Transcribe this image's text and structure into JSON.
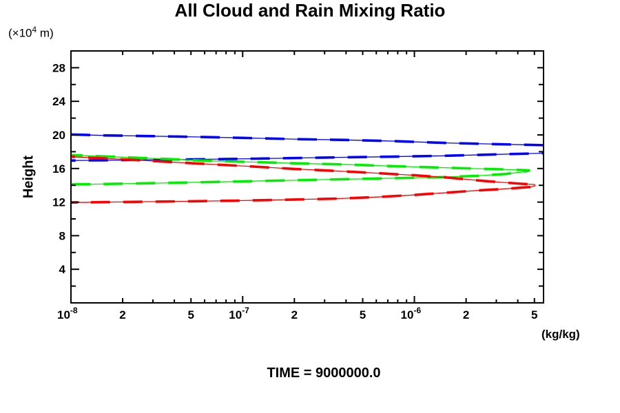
{
  "title": "All Cloud and Rain Mixing Ratio",
  "y_axis": {
    "label": "Height",
    "unit_pre": "(×10",
    "unit_exp": "4",
    "unit_post": " m)"
  },
  "x_axis": {
    "unit": "(kg/kg)"
  },
  "footer": {
    "time_label": "TIME = 9000000.0"
  },
  "colors": {
    "frame": "#000000",
    "blue": "#0000ff",
    "green": "#00ee00",
    "red": "#ff0000",
    "background": "#ffffff"
  },
  "chart_data": {
    "type": "line",
    "x_scale": "log",
    "xlim": [
      1e-08,
      5.65e-06
    ],
    "ylim": [
      0,
      30
    ],
    "grid": false,
    "legend": "none",
    "x_ticks": {
      "major": [
        {
          "value": 1e-08,
          "mantissa": "10",
          "exponent": "-8"
        },
        {
          "value": 1e-07,
          "mantissa": "10",
          "exponent": "-7"
        },
        {
          "value": 1e-06,
          "mantissa": "10",
          "exponent": "-6"
        }
      ],
      "labeled_minor": [
        {
          "value": 2e-08,
          "label": "2"
        },
        {
          "value": 5e-08,
          "label": "5"
        },
        {
          "value": 2e-07,
          "label": "2"
        },
        {
          "value": 5e-07,
          "label": "5"
        },
        {
          "value": 2e-06,
          "label": "2"
        },
        {
          "value": 5e-06,
          "label": "5"
        }
      ],
      "minor": [
        3e-08,
        4e-08,
        6e-08,
        7e-08,
        8e-08,
        9e-08,
        3e-07,
        4e-07,
        6e-07,
        7e-07,
        8e-07,
        9e-07,
        3e-06,
        4e-06
      ]
    },
    "y_ticks": {
      "major": [
        {
          "value": 4,
          "label": "4"
        },
        {
          "value": 8,
          "label": "8"
        },
        {
          "value": 12,
          "label": "12"
        },
        {
          "value": 16,
          "label": "16"
        },
        {
          "value": 20,
          "label": "20"
        },
        {
          "value": 24,
          "label": "24"
        },
        {
          "value": 28,
          "label": "28"
        }
      ],
      "minor": [
        2,
        6,
        10,
        14,
        18,
        22,
        26
      ]
    },
    "series": [
      {
        "name": "blue-profile",
        "color": "#0000ff",
        "clipped_at_right": true,
        "points": [
          [
            1e-08,
            20.05
          ],
          [
            1.5e-08,
            19.95
          ],
          [
            3e-08,
            19.85
          ],
          [
            6e-08,
            19.75
          ],
          [
            1e-07,
            19.65
          ],
          [
            2e-07,
            19.5
          ],
          [
            4e-07,
            19.4
          ],
          [
            8e-07,
            19.25
          ],
          [
            1.5e-06,
            19.05
          ],
          [
            3e-06,
            18.9
          ],
          [
            5.65e-06,
            18.78
          ],
          [
            1.3e-05,
            18.5
          ],
          [
            1.3e-05,
            18.1
          ],
          [
            5.65e-06,
            17.82
          ],
          [
            3e-06,
            17.68
          ],
          [
            1.5e-06,
            17.52
          ],
          [
            7e-07,
            17.4
          ],
          [
            3e-07,
            17.3
          ],
          [
            1.2e-07,
            17.17
          ],
          [
            5e-08,
            17.08
          ],
          [
            2e-08,
            17.0
          ],
          [
            1e-08,
            16.95
          ]
        ]
      },
      {
        "name": "green-profile",
        "color": "#00ee00",
        "clipped_at_right": false,
        "points": [
          [
            1e-08,
            17.6
          ],
          [
            2e-08,
            17.35
          ],
          [
            4e-08,
            17.1
          ],
          [
            5.6e-08,
            16.95
          ],
          [
            1e-07,
            16.8
          ],
          [
            2e-07,
            16.62
          ],
          [
            3.6e-07,
            16.5
          ],
          [
            6e-07,
            16.35
          ],
          [
            1e-06,
            16.2
          ],
          [
            1.6e-06,
            16.08
          ],
          [
            2.3e-06,
            15.98
          ],
          [
            3.2e-06,
            15.9
          ],
          [
            4.2e-06,
            15.82
          ],
          [
            4.7e-06,
            15.78
          ],
          [
            4.3e-06,
            15.6
          ],
          [
            3.4e-06,
            15.35
          ],
          [
            2.3e-06,
            15.12
          ],
          [
            1.4e-06,
            14.97
          ],
          [
            9e-07,
            14.88
          ],
          [
            5e-07,
            14.77
          ],
          [
            3e-07,
            14.68
          ],
          [
            1.5e-07,
            14.55
          ],
          [
            7e-08,
            14.4
          ],
          [
            3e-08,
            14.25
          ],
          [
            1.5e-08,
            14.15
          ],
          [
            1e-08,
            14.1
          ]
        ]
      },
      {
        "name": "red-profile",
        "color": "#ff0000",
        "clipped_at_right": false,
        "points": [
          [
            1e-08,
            17.4
          ],
          [
            2e-08,
            17.1
          ],
          [
            4e-08,
            16.75
          ],
          [
            6e-08,
            16.55
          ],
          [
            1e-07,
            16.3
          ],
          [
            2e-07,
            15.95
          ],
          [
            3.6e-07,
            15.7
          ],
          [
            6e-07,
            15.45
          ],
          [
            1e-06,
            15.2
          ],
          [
            1.6e-06,
            14.9
          ],
          [
            2.3e-06,
            14.6
          ],
          [
            3.2e-06,
            14.35
          ],
          [
            4.2e-06,
            14.18
          ],
          [
            5e-06,
            14.1
          ],
          [
            5.05e-06,
            13.95
          ],
          [
            4.8e-06,
            13.8
          ],
          [
            4.2e-06,
            13.72
          ],
          [
            3.2e-06,
            13.55
          ],
          [
            2.3e-06,
            13.38
          ],
          [
            1.6e-06,
            13.15
          ],
          [
            1e-06,
            12.85
          ],
          [
            6e-07,
            12.6
          ],
          [
            3.6e-07,
            12.42
          ],
          [
            2e-07,
            12.3
          ],
          [
            1e-07,
            12.18
          ],
          [
            5e-08,
            12.1
          ],
          [
            2e-08,
            12.02
          ],
          [
            1e-08,
            11.95
          ]
        ]
      }
    ]
  }
}
